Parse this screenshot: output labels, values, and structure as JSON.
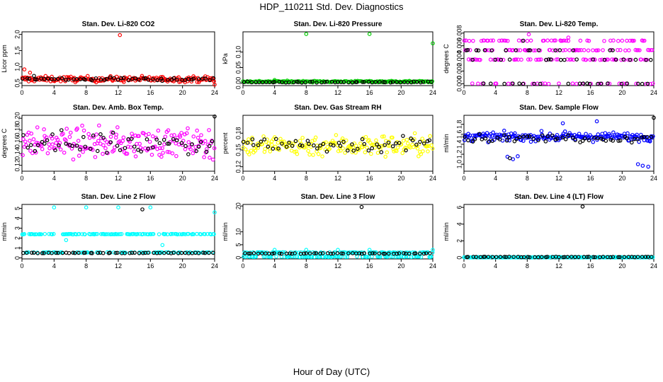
{
  "title": "HDP_110211  Std. Dev. Diagnostics",
  "xlabel": "Hour of Day (UTC)",
  "chart_data": [
    {
      "type": "scatter",
      "title": "Stan. Dev. Li-820 CO2",
      "ylabel": "Licor ppm",
      "xlim": [
        0,
        24
      ],
      "ylim": [
        0.42,
        2.08
      ],
      "yticks": [
        0.5,
        1.0,
        1.5,
        2.0
      ],
      "ytick_labels": [
        "0.5",
        "1.0",
        "1.5",
        "2.0"
      ],
      "xticks": [
        0,
        4,
        8,
        12,
        16,
        20,
        24
      ],
      "xtick_labels": [
        "0",
        "4",
        "8",
        "12",
        "16",
        "20",
        "24"
      ],
      "series": [
        {
          "name": "primary",
          "color": "#ff0000",
          "band": [
            0.62,
            0.07
          ],
          "outliers": [
            [
              12.2,
              1.98
            ],
            [
              0.3,
              0.92
            ],
            [
              1.0,
              0.82
            ],
            [
              24.0,
              0.45
            ]
          ]
        },
        {
          "name": "secondary",
          "color": "#000000",
          "band": [
            0.62,
            0.04
          ],
          "outliers": [
            [
              1.5,
              0.72
            ]
          ]
        }
      ]
    },
    {
      "type": "scatter",
      "title": "Stan. Dev. Li-820 Pressure",
      "ylabel": "kPa",
      "xlim": [
        0,
        24
      ],
      "ylim": [
        -0.008,
        0.165
      ],
      "yticks": [
        0.0,
        0.05,
        0.1
      ],
      "ytick_labels": [
        "0.00",
        "0.05",
        "0.10"
      ],
      "xticks": [
        0,
        4,
        8,
        12,
        16,
        20,
        24
      ],
      "xtick_labels": [
        "0",
        "4",
        "8",
        "12",
        "16",
        "20",
        "24"
      ],
      "series": [
        {
          "name": "primary",
          "color": "#00cc00",
          "band": [
            0.005,
            0.002
          ],
          "outliers": [
            [
              8.0,
              0.158
            ],
            [
              16.0,
              0.158
            ],
            [
              24.0,
              0.128
            ],
            [
              4.0,
              0.01
            ]
          ]
        },
        {
          "name": "secondary",
          "color": "#000000",
          "band": [
            0.003,
            0.0015
          ],
          "outliers": []
        }
      ]
    },
    {
      "type": "scatter",
      "title": "Stan. Dev. Li-820 Temp.",
      "ylabel": "degrees C",
      "xlim": [
        0,
        24
      ],
      "ylim": [
        -0.0003,
        0.0082
      ],
      "yticks": [
        0.0,
        0.002,
        0.004,
        0.006,
        0.008
      ],
      "ytick_labels": [
        "0.000",
        "0.002",
        "0.004",
        "0.006",
        "0.008"
      ],
      "xticks": [
        0,
        4,
        8,
        12,
        16,
        20,
        24
      ],
      "xtick_labels": [
        "0",
        "4",
        "8",
        "12",
        "16",
        "20",
        "24"
      ],
      "series": [
        {
          "name": "primary",
          "color": "#ff00ff",
          "levels": [
            0.0,
            0.0038,
            0.0053,
            0.0068
          ],
          "outliers": [
            [
              8.2,
              0.0078
            ],
            [
              13.2,
              0.0073
            ]
          ]
        },
        {
          "name": "secondary",
          "color": "#000000",
          "levels": [
            0.0,
            0.0038,
            0.0053
          ],
          "outliers": [
            [
              7.5,
              0.0068
            ]
          ]
        }
      ]
    },
    {
      "type": "scatter",
      "title": "Stan. Dev. Amb. Box Temp.",
      "ylabel": "degrees C",
      "xlim": [
        0,
        24
      ],
      "ylim": [
        0.11,
        0.205
      ],
      "yticks": [
        0.12,
        0.14,
        0.16,
        0.18,
        0.2
      ],
      "ytick_labels": [
        "0.12",
        "0.14",
        "0.16",
        "0.18",
        "0.20"
      ],
      "xticks": [
        0,
        4,
        8,
        12,
        16,
        20,
        24
      ],
      "xtick_labels": [
        "0",
        "4",
        "8",
        "12",
        "16",
        "20",
        "24"
      ],
      "series": [
        {
          "name": "primary",
          "color": "#ff00ff",
          "band": [
            0.158,
            0.02
          ],
          "outliers": []
        },
        {
          "name": "secondary",
          "color": "#000000",
          "band": [
            0.158,
            0.016
          ],
          "outliers": [
            [
              24.0,
              0.203
            ]
          ]
        }
      ]
    },
    {
      "type": "scatter",
      "title": "Stan. Dev. Gas Stream RH",
      "ylabel": "percent",
      "xlim": [
        0,
        24
      ],
      "ylim": [
        0.112,
        0.212
      ],
      "yticks": [
        0.12,
        0.15,
        0.18
      ],
      "ytick_labels": [
        "0.12",
        "0.15",
        "0.18"
      ],
      "xticks": [
        0,
        4,
        8,
        12,
        16,
        20,
        24
      ],
      "xtick_labels": [
        "0",
        "4",
        "8",
        "12",
        "16",
        "20",
        "24"
      ],
      "series": [
        {
          "name": "primary",
          "color": "#ffff00",
          "band": [
            0.158,
            0.016
          ],
          "outliers": []
        },
        {
          "name": "secondary",
          "color": "#000000",
          "band": [
            0.16,
            0.012
          ],
          "outliers": []
        }
      ]
    },
    {
      "type": "scatter",
      "title": "Stan. Dev. Sample Flow",
      "ylabel": "ml/min",
      "xlim": [
        0,
        24
      ],
      "ylim": [
        0.86,
        1.98
      ],
      "yticks": [
        1.0,
        1.2,
        1.4,
        1.6,
        1.8
      ],
      "ytick_labels": [
        "1.0",
        "1.2",
        "1.4",
        "1.6",
        "1.8"
      ],
      "xticks": [
        0,
        4,
        8,
        12,
        16,
        20,
        24
      ],
      "xtick_labels": [
        "0",
        "4",
        "8",
        "12",
        "16",
        "20",
        "24"
      ],
      "series": [
        {
          "name": "primary",
          "color": "#0000ff",
          "band": [
            1.55,
            0.07
          ],
          "outliers": [
            [
              5.5,
              1.15
            ],
            [
              6.2,
              1.1
            ],
            [
              6.8,
              1.16
            ],
            [
              22.0,
              1.0
            ],
            [
              22.6,
              0.97
            ],
            [
              23.3,
              0.95
            ],
            [
              12.5,
              1.82
            ],
            [
              16.8,
              1.86
            ]
          ]
        },
        {
          "name": "secondary",
          "color": "#000000",
          "band": [
            1.52,
            0.06
          ],
          "outliers": [
            [
              24.0,
              1.93
            ],
            [
              5.8,
              1.12
            ]
          ]
        }
      ]
    },
    {
      "type": "scatter",
      "title": "Stan. Dev. Line 2 Flow",
      "ylabel": "ml/min",
      "xlim": [
        0,
        24
      ],
      "ylim": [
        -0.1,
        5.4
      ],
      "yticks": [
        0,
        1,
        2,
        3,
        4,
        5
      ],
      "ytick_labels": [
        "0",
        "1",
        "2",
        "3",
        "4",
        "5"
      ],
      "xticks": [
        0,
        4,
        8,
        12,
        16,
        20,
        24
      ],
      "xtick_labels": [
        "0",
        "4",
        "8",
        "12",
        "16",
        "20",
        "24"
      ],
      "series": [
        {
          "name": "primary",
          "color": "#00ffff",
          "levels": [
            2.4,
            0.55
          ],
          "outliers": [
            [
              4.0,
              5.1
            ],
            [
              8.0,
              5.1
            ],
            [
              12.0,
              5.1
            ],
            [
              16.0,
              5.1
            ],
            [
              24.0,
              4.6
            ],
            [
              17.5,
              1.3
            ],
            [
              5.5,
              1.8
            ]
          ]
        },
        {
          "name": "secondary",
          "color": "#000000",
          "levels": [
            0.5
          ],
          "outliers": [
            [
              15.0,
              4.9
            ]
          ]
        }
      ]
    },
    {
      "type": "scatter",
      "title": "Stan. Dev. Line 3 Flow",
      "ylabel": "ml/min",
      "xlim": [
        0,
        24
      ],
      "ylim": [
        -0.5,
        20.6
      ],
      "yticks": [
        0,
        5,
        10,
        20
      ],
      "ytick_labels": [
        "0",
        "5",
        "10",
        "20"
      ],
      "xticks": [
        0,
        4,
        8,
        12,
        16,
        20,
        24
      ],
      "xtick_labels": [
        "0",
        "4",
        "8",
        "12",
        "16",
        "20",
        "24"
      ],
      "series": [
        {
          "name": "primary",
          "color": "#00ffff",
          "levels": [
            0.35,
            2.0
          ],
          "outliers": [
            [
              4.0,
              3.0
            ],
            [
              8.0,
              3.0
            ],
            [
              12.0,
              3.0
            ],
            [
              16.0,
              3.0
            ],
            [
              24.0,
              3.0
            ]
          ]
        },
        {
          "name": "secondary",
          "color": "#000000",
          "levels": [
            1.6
          ],
          "outliers": [
            [
              15.0,
              19.6
            ]
          ]
        }
      ]
    },
    {
      "type": "scatter",
      "title": "Stan. Dev. Line 4 (LT) Flow",
      "ylabel": "ml/min",
      "xlim": [
        0,
        24
      ],
      "ylim": [
        -0.15,
        6.35
      ],
      "yticks": [
        0,
        2,
        4,
        6
      ],
      "ytick_labels": [
        "0",
        "2",
        "4",
        "6"
      ],
      "xticks": [
        0,
        4,
        8,
        12,
        16,
        20,
        24
      ],
      "xtick_labels": [
        "0",
        "4",
        "8",
        "12",
        "16",
        "20",
        "24"
      ],
      "series": [
        {
          "name": "primary",
          "color": "#00ffff",
          "levels": [
            0.05
          ],
          "outliers": []
        },
        {
          "name": "secondary",
          "color": "#000000",
          "levels": [
            0.08
          ],
          "outliers": [
            [
              15.0,
              6.1
            ]
          ]
        }
      ]
    }
  ]
}
